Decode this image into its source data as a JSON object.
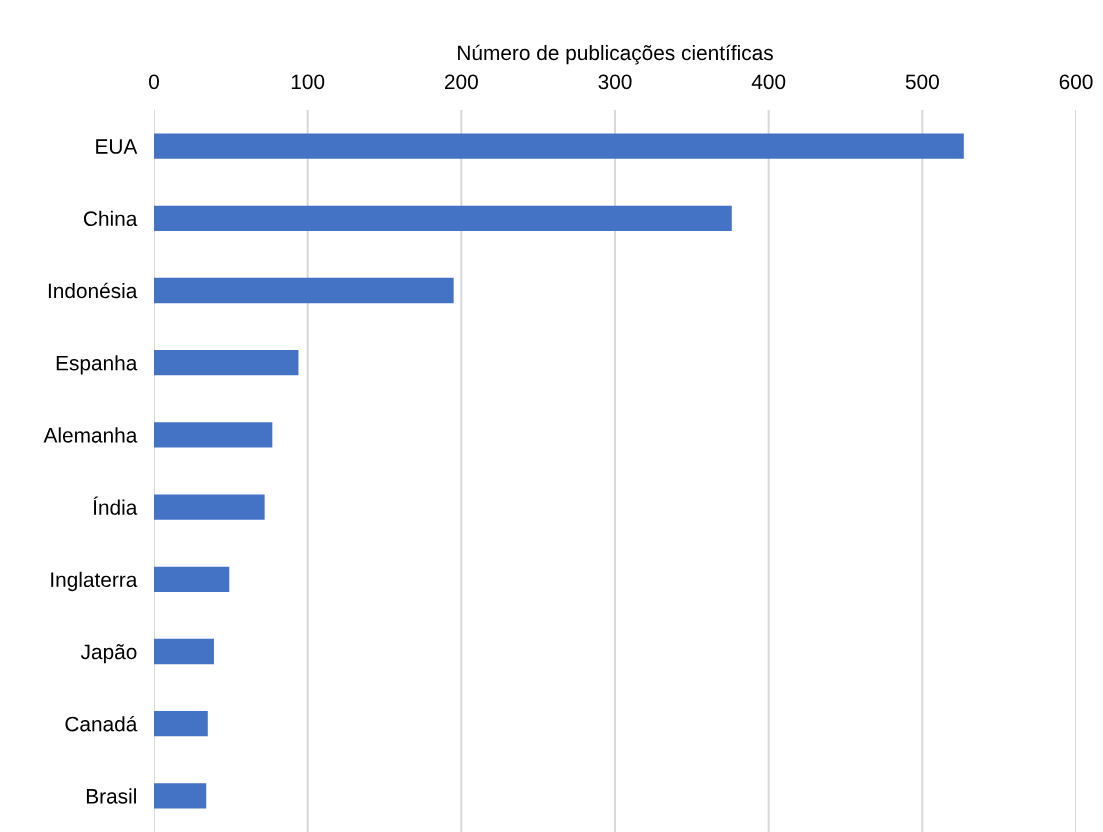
{
  "chart_data": {
    "type": "bar",
    "orientation": "horizontal",
    "xlabel": "Número de publicações científicas",
    "categories": [
      "EUA",
      "China",
      "Indonésia",
      "Espanha",
      "Alemanha",
      "Índia",
      "Inglaterra",
      "Japão",
      "Canadá",
      "Brasil"
    ],
    "values": [
      527,
      376,
      195,
      94,
      77,
      72,
      49,
      39,
      35,
      34
    ],
    "color": "#4472c4",
    "xlim": [
      0,
      600
    ],
    "xticks": [
      0,
      100,
      200,
      300,
      400,
      500,
      600
    ],
    "grid": "x"
  }
}
